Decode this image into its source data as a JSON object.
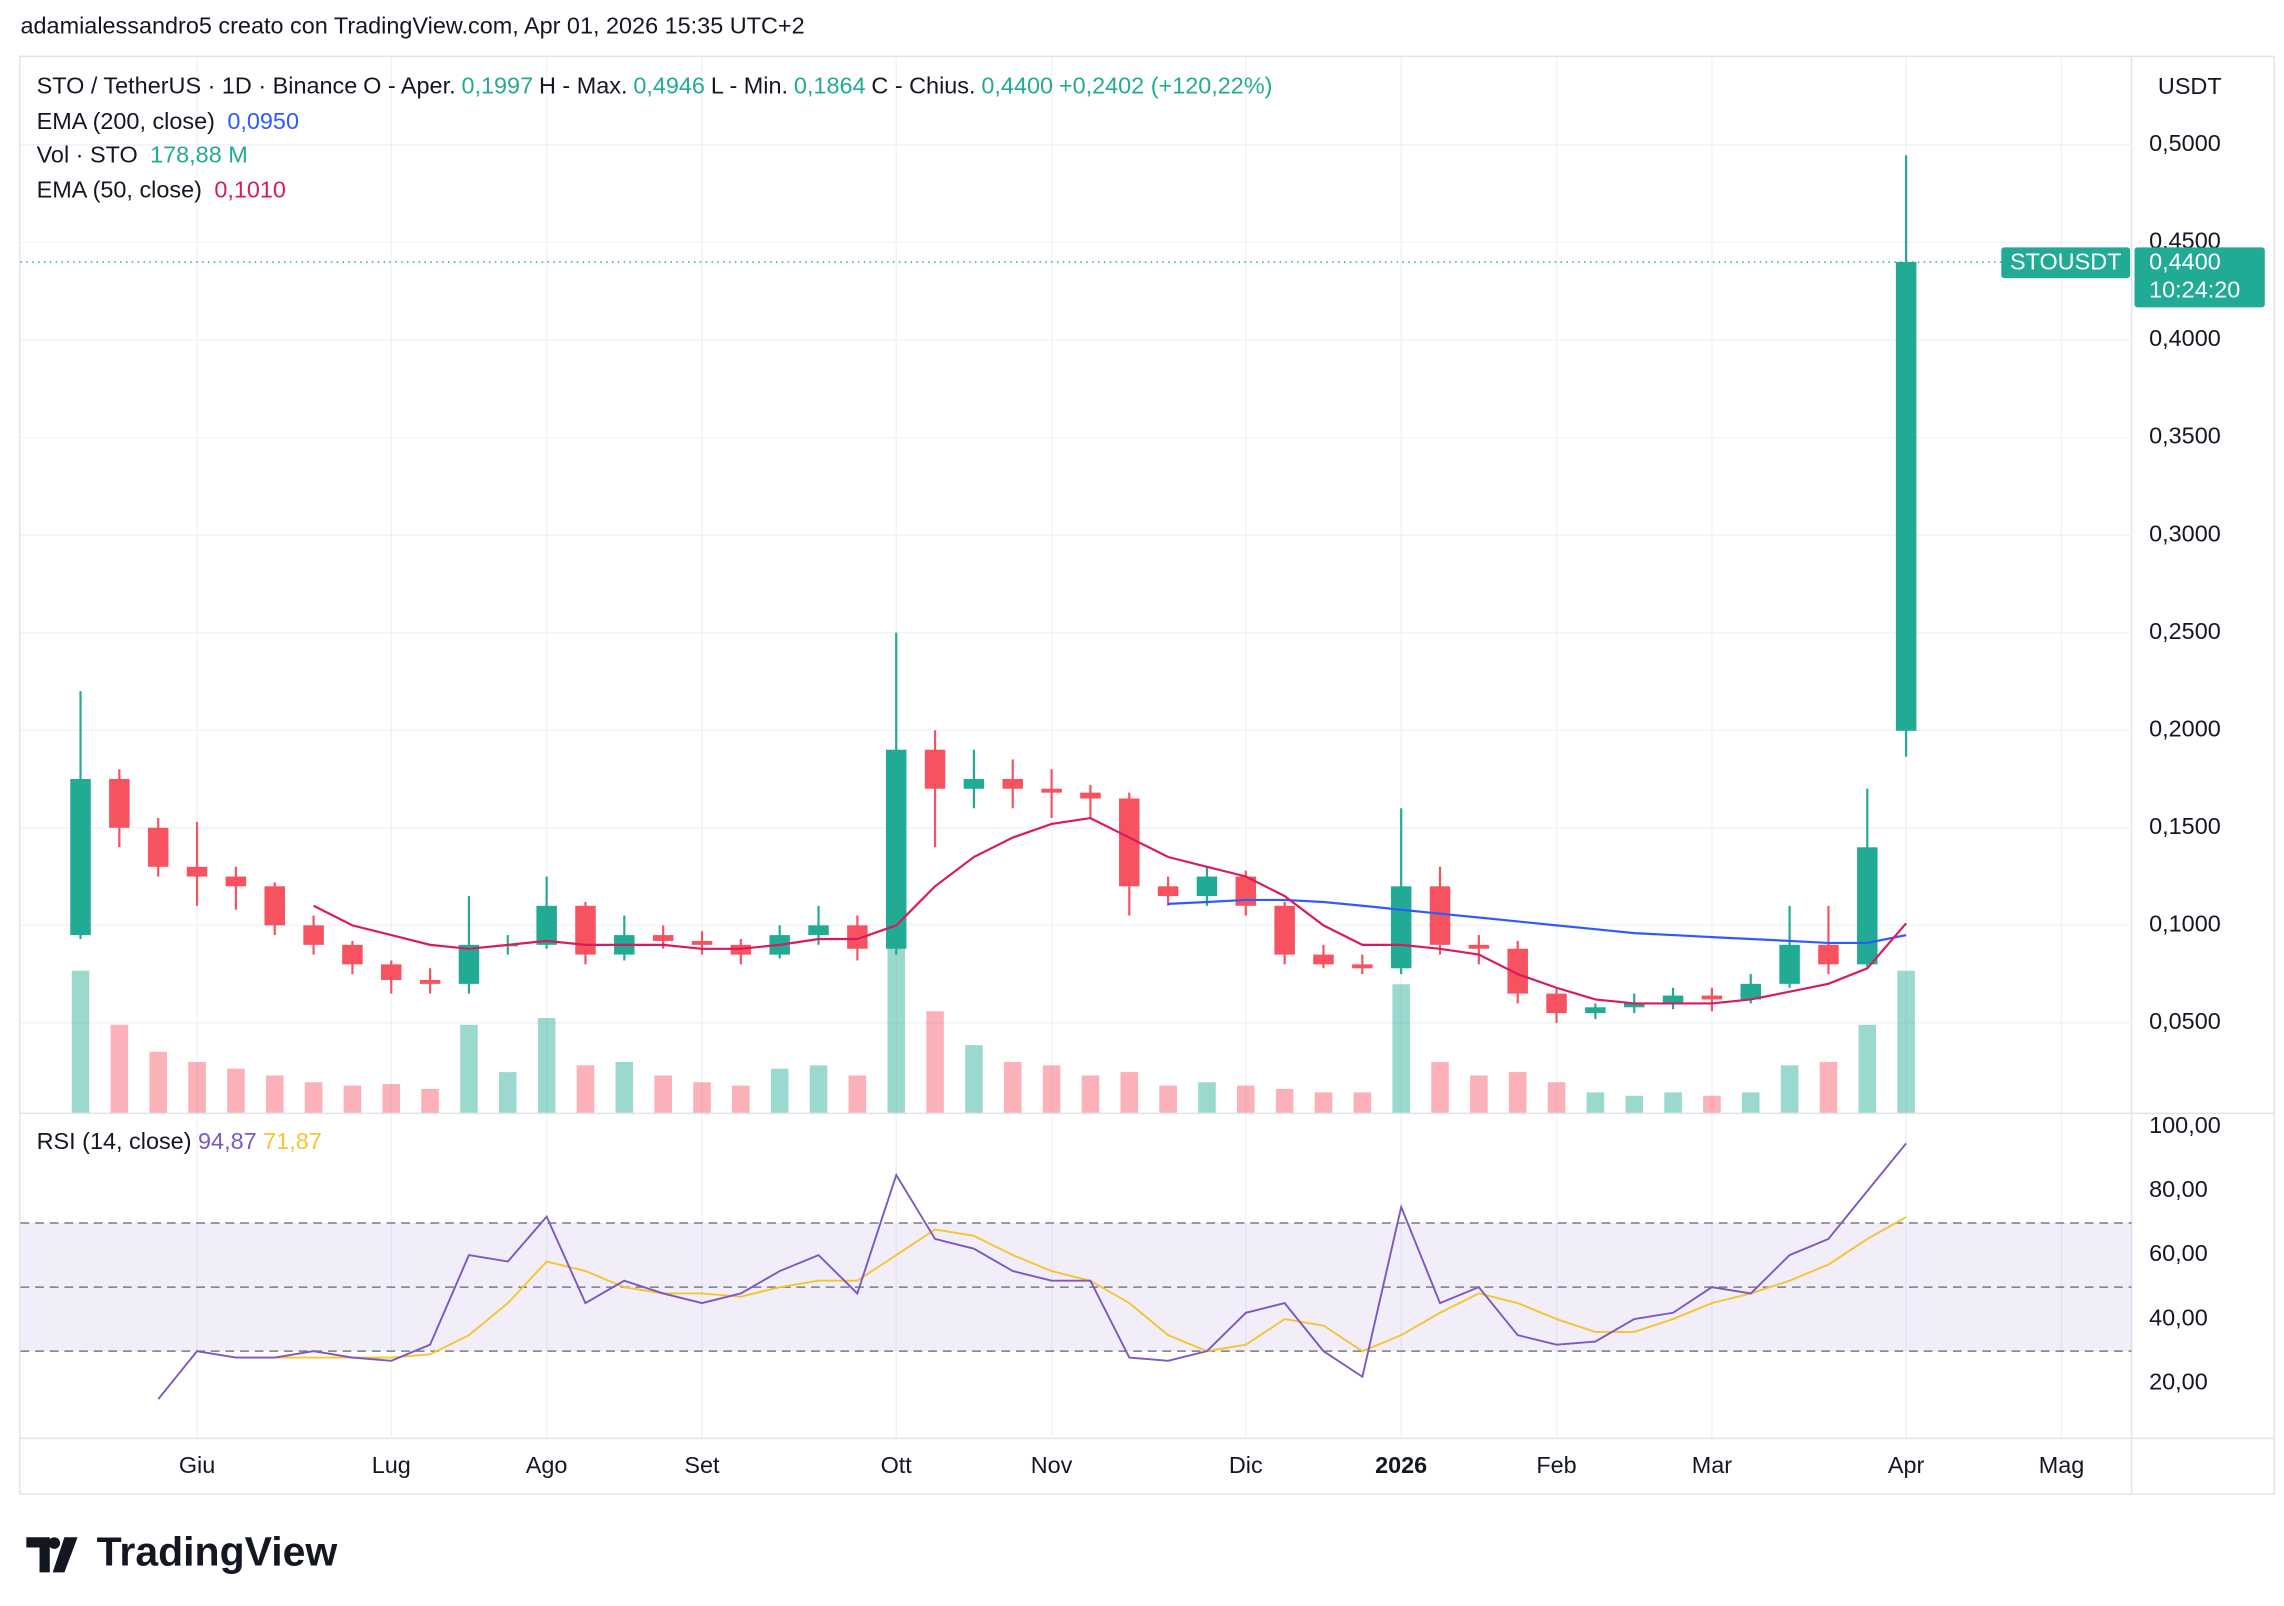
{
  "caption": "adamialessandro5 creato con TradingView.com, Apr 01, 2026 15:35 UTC+2",
  "logo": "TradingView",
  "chart_data": {
    "type": "candlestick",
    "symbol": "STO / TetherUS · 1D · Binance",
    "ohlc_labels": [
      {
        "label": "O - Aper.",
        "value": "0,1997"
      },
      {
        "label": "H - Max.",
        "value": "0,4946"
      },
      {
        "label": "L - Min.",
        "value": "0,1864"
      },
      {
        "label": "C - Chius.",
        "value": "0,4400"
      }
    ],
    "change": "+0,2402 (+120,22%)",
    "currency": "USDT",
    "last_price": {
      "tag": "STOUSDT",
      "value": 0.44,
      "label": "0,4400",
      "countdown": "10:24:20"
    },
    "categories": [
      null,
      null,
      null,
      "Giu",
      null,
      null,
      null,
      null,
      "Lug",
      null,
      null,
      null,
      "Ago",
      null,
      null,
      null,
      "Set",
      null,
      null,
      null,
      null,
      "Ott",
      null,
      null,
      null,
      "Nov",
      null,
      null,
      null,
      null,
      "Dic",
      null,
      null,
      null,
      "2026",
      null,
      null,
      null,
      "Feb",
      null,
      null,
      null,
      "Mar",
      null,
      null,
      null,
      null,
      "Apr",
      null,
      null,
      null,
      "Mag",
      null
    ],
    "open": [
      0.095,
      0.175,
      0.15,
      0.13,
      0.125,
      0.12,
      0.1,
      0.09,
      0.08,
      0.072,
      0.07,
      0.09,
      0.09,
      0.11,
      0.085,
      0.095,
      0.092,
      0.09,
      0.085,
      0.095,
      0.1,
      0.088,
      0.19,
      0.17,
      0.175,
      0.17,
      0.168,
      0.165,
      0.12,
      0.115,
      0.125,
      0.11,
      0.085,
      0.08,
      0.078,
      0.12,
      0.09,
      0.088,
      0.065,
      0.055,
      0.058,
      0.06,
      0.064,
      0.062,
      0.07,
      0.09,
      0.08,
      0.1997,
      null,
      null,
      null,
      null,
      null
    ],
    "high": [
      0.22,
      0.18,
      0.155,
      0.153,
      0.13,
      0.122,
      0.105,
      0.092,
      0.082,
      0.078,
      0.115,
      0.095,
      0.125,
      0.112,
      0.105,
      0.1,
      0.097,
      0.093,
      0.1,
      0.11,
      0.105,
      0.25,
      0.2,
      0.19,
      0.185,
      0.18,
      0.172,
      0.168,
      0.125,
      0.13,
      0.128,
      0.112,
      0.09,
      0.085,
      0.16,
      0.13,
      0.095,
      0.092,
      0.068,
      0.06,
      0.065,
      0.068,
      0.068,
      0.075,
      0.11,
      0.11,
      0.17,
      0.4946,
      null,
      null,
      null,
      null,
      null
    ],
    "low": [
      0.093,
      0.14,
      0.125,
      0.11,
      0.108,
      0.095,
      0.085,
      0.075,
      0.065,
      0.065,
      0.065,
      0.085,
      0.088,
      0.08,
      0.082,
      0.088,
      0.085,
      0.08,
      0.083,
      0.09,
      0.082,
      0.085,
      0.14,
      0.16,
      0.16,
      0.155,
      0.155,
      0.105,
      0.11,
      0.11,
      0.105,
      0.08,
      0.078,
      0.075,
      0.075,
      0.085,
      0.08,
      0.06,
      0.05,
      0.052,
      0.055,
      0.057,
      0.056,
      0.06,
      0.068,
      0.075,
      0.078,
      0.1864,
      null,
      null,
      null,
      null,
      null
    ],
    "close": [
      0.175,
      0.15,
      0.13,
      0.125,
      0.12,
      0.1,
      0.09,
      0.08,
      0.072,
      0.07,
      0.09,
      0.09,
      0.11,
      0.085,
      0.095,
      0.092,
      0.09,
      0.085,
      0.095,
      0.1,
      0.088,
      0.19,
      0.17,
      0.175,
      0.17,
      0.168,
      0.165,
      0.12,
      0.115,
      0.125,
      0.11,
      0.085,
      0.08,
      0.078,
      0.12,
      0.09,
      0.088,
      0.065,
      0.055,
      0.058,
      0.06,
      0.064,
      0.062,
      0.07,
      0.09,
      0.08,
      0.14,
      0.44,
      null,
      null,
      null,
      null,
      null
    ],
    "up_color": "#22ab94",
    "down_color": "#f7525f",
    "ylim": [
      0.004,
      0.545
    ],
    "yticks": [
      {
        "value": 0.05,
        "label": "0,0500"
      },
      {
        "value": 0.1,
        "label": "0,1000"
      },
      {
        "value": 0.15,
        "label": "0,1500"
      },
      {
        "value": 0.2,
        "label": "0,2000"
      },
      {
        "value": 0.25,
        "label": "0,2500"
      },
      {
        "value": 0.3,
        "label": "0,3000"
      },
      {
        "value": 0.35,
        "label": "0,3500"
      },
      {
        "value": 0.4,
        "label": "0,4000"
      },
      {
        "value": 0.45,
        "label": "0,4500"
      },
      {
        "value": 0.5,
        "label": "0,5000"
      }
    ],
    "grid": true,
    "overlays": [
      {
        "name": "EMA (200, close)",
        "value_label": "0,0950",
        "color": "#2e5bff",
        "values": [
          null,
          null,
          null,
          null,
          null,
          null,
          null,
          null,
          null,
          null,
          null,
          null,
          null,
          null,
          null,
          null,
          null,
          null,
          null,
          null,
          null,
          null,
          null,
          null,
          null,
          null,
          null,
          null,
          0.111,
          0.112,
          0.113,
          0.113,
          0.112,
          0.11,
          0.108,
          0.106,
          0.104,
          0.102,
          0.1,
          0.098,
          0.096,
          0.095,
          0.094,
          0.093,
          0.092,
          0.091,
          0.091,
          0.095,
          null,
          null,
          null,
          null,
          null
        ]
      },
      {
        "name": "EMA (50, close)",
        "value_label": "0,1010",
        "color": "#d81b60",
        "values": [
          null,
          null,
          null,
          null,
          null,
          null,
          0.11,
          0.1,
          0.095,
          0.09,
          0.088,
          0.09,
          0.092,
          0.09,
          0.09,
          0.09,
          0.088,
          0.088,
          0.09,
          0.093,
          0.093,
          0.1,
          0.12,
          0.135,
          0.145,
          0.152,
          0.155,
          0.145,
          0.135,
          0.13,
          0.125,
          0.115,
          0.1,
          0.09,
          0.09,
          0.088,
          0.085,
          0.075,
          0.068,
          0.062,
          0.06,
          0.06,
          0.06,
          0.062,
          0.066,
          0.07,
          0.078,
          0.101,
          null,
          null,
          null,
          null,
          null
        ]
      }
    ],
    "volume": {
      "name": "Vol · STO",
      "value_label": "178,88 M",
      "values": [
        420,
        260,
        180,
        150,
        130,
        110,
        90,
        80,
        85,
        70,
        260,
        120,
        280,
        140,
        150,
        110,
        90,
        80,
        130,
        140,
        110,
        520,
        300,
        200,
        150,
        140,
        110,
        120,
        80,
        90,
        80,
        70,
        60,
        60,
        380,
        150,
        110,
        120,
        90,
        60,
        50,
        60,
        50,
        60,
        140,
        150,
        260,
        420,
        null,
        null,
        null,
        null,
        null
      ]
    },
    "rsi": {
      "name": "RSI (14, close)",
      "value_label": "94,87",
      "ma_label": "71,87",
      "color": "#7e57c2",
      "ma_color": "#f5c431",
      "values": [
        null,
        null,
        15,
        30,
        28,
        28,
        30,
        28,
        27,
        32,
        60,
        58,
        72,
        45,
        52,
        48,
        45,
        48,
        55,
        60,
        48,
        85,
        65,
        62,
        55,
        52,
        52,
        28,
        27,
        30,
        42,
        45,
        30,
        22,
        75,
        45,
        50,
        35,
        32,
        33,
        40,
        42,
        50,
        48,
        60,
        65,
        80,
        94.87,
        null,
        null,
        null,
        null,
        null
      ],
      "ma_values": [
        null,
        null,
        null,
        null,
        28,
        28,
        28,
        28,
        28,
        29,
        35,
        45,
        58,
        55,
        50,
        48,
        48,
        47,
        50,
        52,
        52,
        60,
        68,
        66,
        60,
        55,
        52,
        45,
        35,
        30,
        32,
        40,
        38,
        30,
        35,
        42,
        48,
        45,
        40,
        36,
        36,
        40,
        45,
        48,
        52,
        57,
        65,
        71.87,
        null,
        null,
        null,
        null,
        null
      ],
      "ylim": [
        3,
        104
      ],
      "yticks": [
        {
          "value": 20,
          "label": "20,00"
        },
        {
          "value": 40,
          "label": "40,00"
        },
        {
          "value": 60,
          "label": "60,00"
        },
        {
          "value": 80,
          "label": "80,00"
        },
        {
          "value": 100,
          "label": "100,00"
        }
      ],
      "bands": [
        30,
        50,
        70
      ]
    }
  }
}
